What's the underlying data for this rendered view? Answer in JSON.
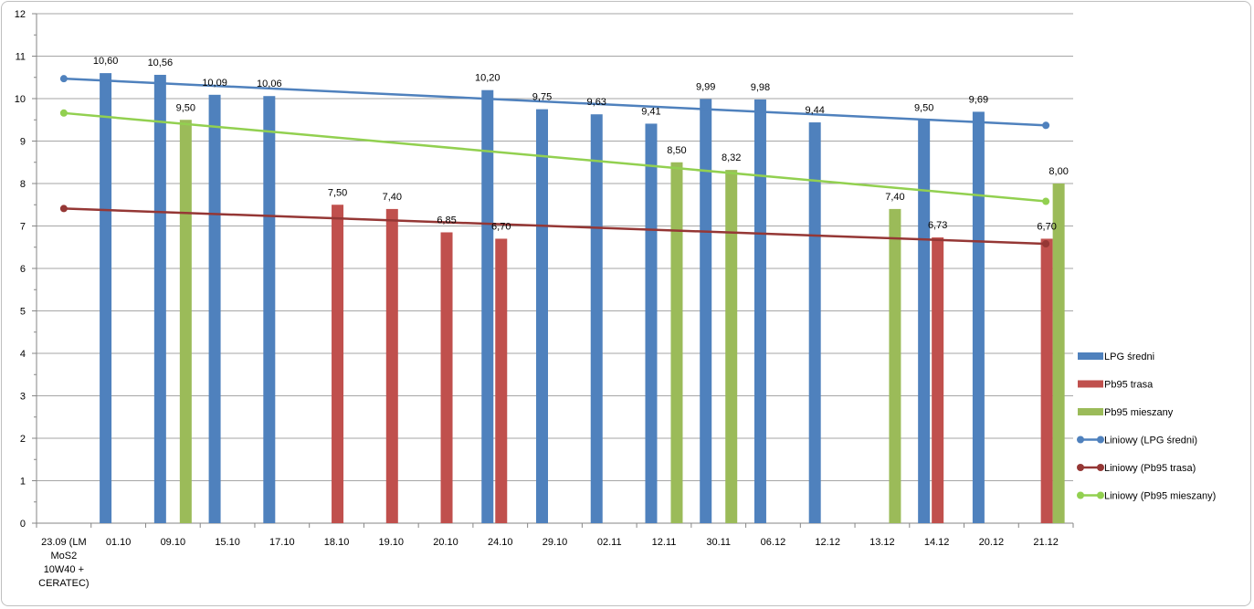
{
  "chart_data": {
    "type": "bar",
    "ylim": [
      0,
      12
    ],
    "yticks": [
      "0",
      "1",
      "2",
      "3",
      "4",
      "5",
      "6",
      "7",
      "8",
      "9",
      "10",
      "11",
      "12"
    ],
    "categories": [
      [
        "23.09 (LM",
        "MoS2",
        "10W40 +",
        "CERATEC)"
      ],
      [
        "01.10"
      ],
      [
        "09.10"
      ],
      [
        "15.10"
      ],
      [
        "17.10"
      ],
      [
        "18.10"
      ],
      [
        "19.10"
      ],
      [
        "20.10"
      ],
      [
        "24.10"
      ],
      [
        "29.10"
      ],
      [
        "02.11"
      ],
      [
        "12.11"
      ],
      [
        "30.11"
      ],
      [
        "06.12"
      ],
      [
        "12.12"
      ],
      [
        "13.12"
      ],
      [
        "14.12"
      ],
      [
        "20.12"
      ],
      [
        "21.12"
      ]
    ],
    "series": [
      {
        "name": "LPG średni",
        "color": "#4f81bd",
        "values": [
          null,
          10.6,
          10.56,
          10.09,
          10.06,
          null,
          null,
          null,
          10.2,
          9.75,
          9.63,
          9.41,
          9.99,
          9.98,
          9.44,
          null,
          9.5,
          9.69,
          null
        ],
        "labels": [
          null,
          "10,60",
          "10,56",
          "10,09",
          "10,06",
          null,
          null,
          null,
          "10,20",
          "9,75",
          "9,63",
          "9,41",
          "9,99",
          "9,98",
          "9,44",
          null,
          "9,50",
          "9,69",
          null
        ]
      },
      {
        "name": "Pb95 trasa",
        "color": "#c0504d",
        "values": [
          null,
          null,
          null,
          null,
          null,
          7.5,
          7.4,
          6.85,
          6.7,
          null,
          null,
          null,
          null,
          null,
          null,
          null,
          6.73,
          null,
          6.7
        ],
        "labels": [
          null,
          null,
          null,
          null,
          null,
          "7,50",
          "7,40",
          "6,85",
          "6,70",
          null,
          null,
          null,
          null,
          null,
          null,
          null,
          "6,73",
          null,
          "6,70"
        ]
      },
      {
        "name": "Pb95 mieszany",
        "color": "#9bbb59",
        "values": [
          null,
          null,
          9.5,
          null,
          null,
          null,
          null,
          null,
          null,
          null,
          null,
          8.5,
          8.32,
          null,
          null,
          7.4,
          null,
          null,
          8.0
        ],
        "labels": [
          null,
          null,
          "9,50",
          null,
          null,
          null,
          null,
          null,
          null,
          null,
          null,
          "8,50",
          "8,32",
          null,
          null,
          "7,40",
          null,
          null,
          "8,00"
        ]
      }
    ],
    "trendlines": [
      {
        "name": "Liniowy (LPG średni)",
        "color": "#4f81bd",
        "start": 10.47,
        "end": 9.37
      },
      {
        "name": "Liniowy (Pb95 trasa)",
        "color": "#953735",
        "start": 7.41,
        "end": 6.58
      },
      {
        "name": "Liniowy (Pb95 mieszany)",
        "color": "#92d050",
        "start": 9.66,
        "end": 7.58
      }
    ],
    "grid": true,
    "legend": "right"
  }
}
